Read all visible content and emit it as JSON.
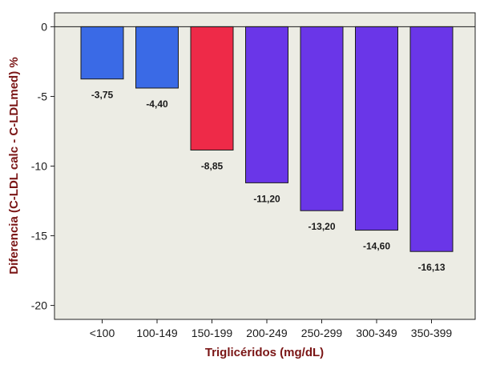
{
  "chart_data": {
    "type": "bar",
    "xlabel": "Triglicéridos (mg/dL)",
    "ylabel": "Diferencia (C-LDL calc - C-LDLmed) %",
    "categories": [
      "<100",
      "100-149",
      "150-199",
      "200-249",
      "250-299",
      "300-349",
      "350-399"
    ],
    "values": [
      -3.75,
      -4.4,
      -8.85,
      -11.2,
      -13.2,
      -14.6,
      -16.13
    ],
    "value_labels": [
      "-3,75",
      "-4,40",
      "-8,85",
      "-11,20",
      "-13,20",
      "-14,60",
      "-16,13"
    ],
    "bar_colors": [
      "#3a6ae6",
      "#3a6ae6",
      "#ee2a48",
      "#6a36e8",
      "#6a36e8",
      "#6a36e8",
      "#6a36e8"
    ],
    "yticks": [
      0,
      -5,
      -10,
      -15,
      -20
    ],
    "ytick_labels": [
      "0",
      "-5",
      "-10",
      "-15",
      "-20"
    ],
    "ylim": [
      -21,
      1
    ],
    "plot_background": "#ecece4",
    "axis_title_color": "#7a1515",
    "grid": false,
    "reference_line": 0
  }
}
